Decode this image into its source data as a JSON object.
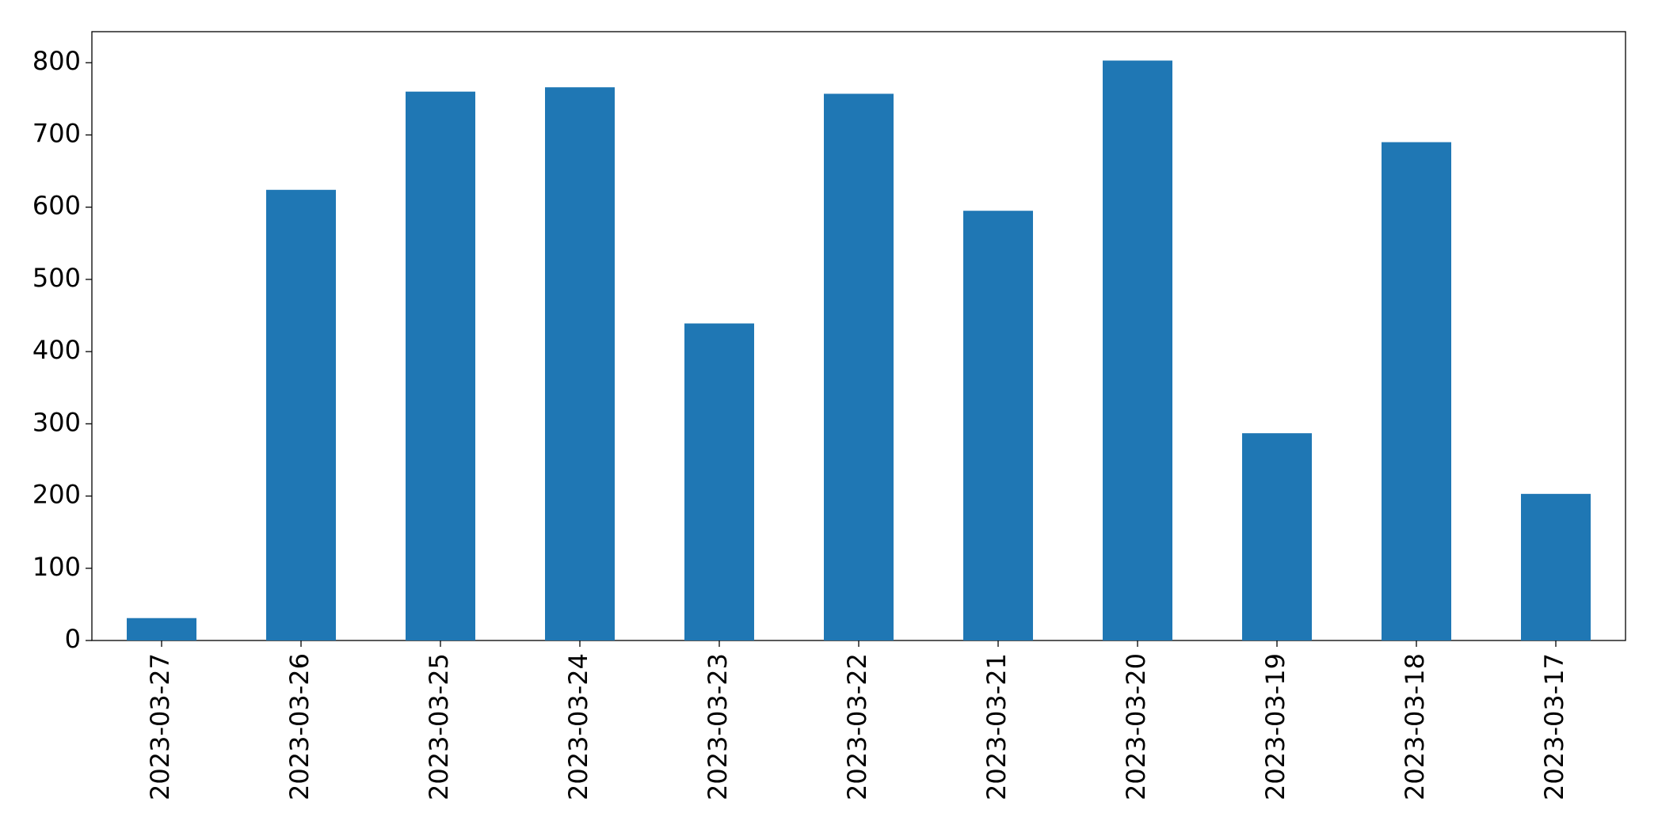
{
  "chart_data": {
    "type": "bar",
    "categories": [
      "2023-03-27",
      "2023-03-26",
      "2023-03-25",
      "2023-03-24",
      "2023-03-23",
      "2023-03-22",
      "2023-03-21",
      "2023-03-20",
      "2023-03-19",
      "2023-03-18",
      "2023-03-17"
    ],
    "values": [
      31,
      624,
      760,
      766,
      439,
      757,
      595,
      803,
      287,
      690,
      203
    ],
    "color": "#1f77b4",
    "ylim": [
      0,
      843
    ],
    "yticks": [
      0,
      100,
      200,
      300,
      400,
      500,
      600,
      700,
      800
    ],
    "grid": false
  }
}
